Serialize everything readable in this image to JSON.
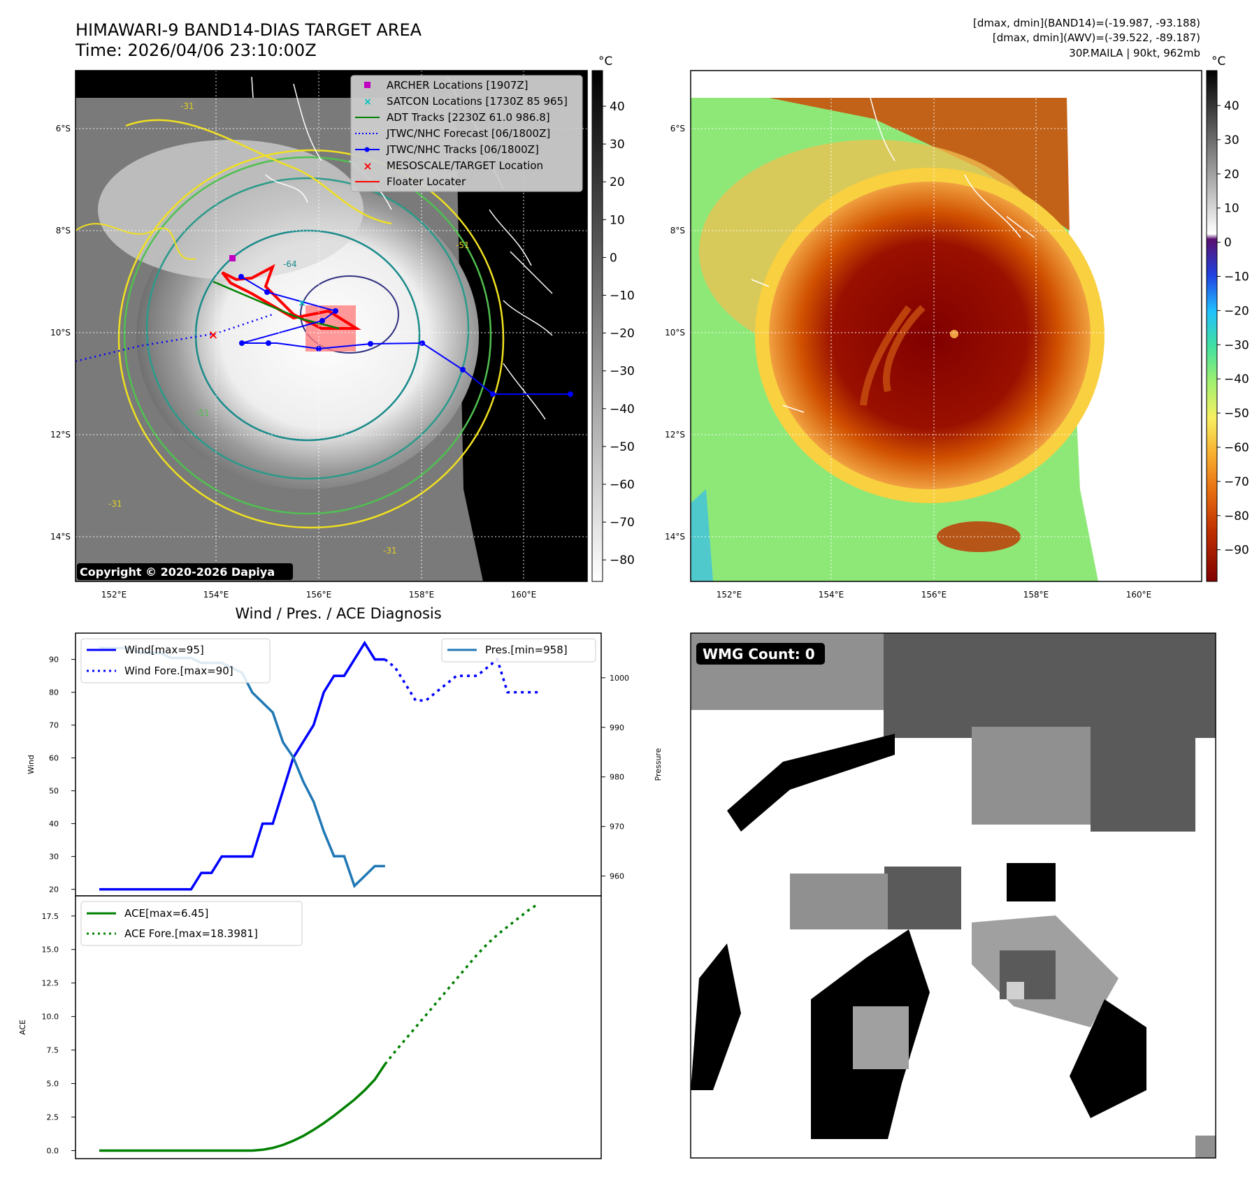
{
  "header": {
    "title": "HIMAWARI-9 BAND14-DIAS TARGET AREA",
    "time": "Time: 2026/04/06 23:10:00Z",
    "stat1": "[dmax, dmin](BAND14)=(-19.987, -93.188)",
    "stat2": "[dmax, dmin](AWV)=(-39.522, -89.187)",
    "storm": "30P.MAILA | 90kt, 962mb"
  },
  "maps": {
    "lat_labels": [
      "6°S",
      "8°S",
      "10°S",
      "12°S",
      "14°S"
    ],
    "lon_labels": [
      "152°E",
      "154°E",
      "156°E",
      "158°E",
      "160°E"
    ],
    "copyright": "Copyright © 2020-2026 Dapiya",
    "legend": [
      {
        "label": "ARCHER Locations [1907Z]",
        "color": "#c000c0",
        "marker": "square"
      },
      {
        "label": "SATCON Locations [1730Z 85 965]",
        "color": "#00c0c0",
        "marker": "x"
      },
      {
        "label": "ADT Tracks [2230Z 61.0 986.8]",
        "color": "#008000",
        "marker": "line"
      },
      {
        "label": "JTWC/NHC Forecast [06/1800Z]",
        "color": "#0000ff",
        "marker": "dotted"
      },
      {
        "label": "JTWC/NHC Tracks [06/1800Z]",
        "color": "#0000ff",
        "marker": "line-dot"
      },
      {
        "label": "MESOSCALE/TARGET Location",
        "color": "#ff0000",
        "marker": "x"
      },
      {
        "label": "Floater Locater",
        "color": "#ff0000",
        "marker": "line"
      }
    ],
    "colorbar_unit": "°C",
    "colorbar1_ticks": [
      "40",
      "30",
      "20",
      "10",
      "0",
      "−10",
      "−20",
      "−30",
      "−40",
      "−50",
      "−60",
      "−70",
      "−80"
    ],
    "colorbar2_ticks": [
      "40",
      "30",
      "20",
      "10",
      "0",
      "−10",
      "−20",
      "−30",
      "−40",
      "−50",
      "−60",
      "−70",
      "−80",
      "−90"
    ],
    "contour_labels": [
      "-31",
      "-51",
      "-64",
      "-31",
      "-51",
      "-31"
    ]
  },
  "diagnosis": {
    "title": "Wind / Pres. / ACE Diagnosis",
    "wmg": "WMG Count: 0"
  },
  "chart_data": [
    {
      "type": "line",
      "title": "Wind / Pres. / ACE Diagnosis",
      "ylabel": "Wind",
      "y2label": "Pressure",
      "ylim": [
        18,
        98
      ],
      "y2lim": [
        956,
        1009
      ],
      "yticks": [
        "90",
        "80",
        "70",
        "60",
        "50",
        "40",
        "30",
        "20"
      ],
      "y2ticks": [
        "1000",
        "990",
        "980",
        "970",
        "960"
      ],
      "series": [
        {
          "name": "Wind[max=95]",
          "axis": "left",
          "style": "solid",
          "color": "#0000ff",
          "x": [
            0,
            1,
            2,
            3,
            4,
            5,
            6,
            7,
            8,
            9,
            10,
            11,
            12,
            13,
            14,
            15,
            16,
            17,
            18,
            19,
            20,
            21,
            22,
            23,
            24,
            25,
            26,
            27,
            28
          ],
          "values": [
            20,
            20,
            20,
            20,
            20,
            20,
            20,
            20,
            20,
            20,
            25,
            25,
            30,
            30,
            30,
            30,
            40,
            40,
            50,
            60,
            65,
            70,
            80,
            85,
            85,
            90,
            95,
            90,
            90
          ]
        },
        {
          "name": "Wind Fore.[max=90]",
          "axis": "left",
          "style": "dotted",
          "color": "#0000ff",
          "x": [
            28,
            29,
            30,
            31,
            32,
            33,
            34,
            35,
            36,
            37,
            38,
            39,
            40,
            41,
            42,
            43
          ],
          "values": [
            90,
            87.5,
            82.5,
            77.5,
            77.5,
            80,
            82.5,
            85,
            85,
            85,
            87.5,
            90,
            80,
            80,
            80,
            80
          ]
        },
        {
          "name": "Pres.[min=958]",
          "axis": "right",
          "style": "solid",
          "color": "#1f77b4",
          "x": [
            0,
            1,
            2,
            3,
            4,
            5,
            6,
            7,
            8,
            9,
            10,
            11,
            12,
            13,
            14,
            15,
            16,
            17,
            18,
            19,
            20,
            21,
            22,
            23,
            24,
            25,
            26,
            27,
            28
          ],
          "values": [
            1006,
            1006,
            1006,
            1006,
            1005,
            1005,
            1005,
            1004,
            1004,
            1004,
            1003,
            1003,
            1003,
            1002,
            1001,
            997,
            995,
            993,
            987,
            984,
            979,
            975,
            969,
            964,
            964,
            958,
            960,
            962,
            962
          ]
        }
      ]
    },
    {
      "type": "line",
      "ylabel": "ACE",
      "ylim": [
        -0.6,
        19.0
      ],
      "yticks": [
        "17.5",
        "15.0",
        "12.5",
        "10.0",
        "7.5",
        "5.0",
        "2.5",
        "0.0"
      ],
      "series": [
        {
          "name": "ACE[max=6.45]",
          "style": "solid",
          "color": "#008000",
          "x": [
            0,
            1,
            2,
            3,
            4,
            5,
            6,
            7,
            8,
            9,
            10,
            11,
            12,
            13,
            14,
            15,
            16,
            17,
            18,
            19,
            20,
            21,
            22,
            23,
            24,
            25,
            26,
            27,
            28
          ],
          "values": [
            0,
            0,
            0,
            0,
            0,
            0,
            0,
            0,
            0,
            0,
            0,
            0,
            0,
            0,
            0,
            0,
            0.06,
            0.2,
            0.42,
            0.73,
            1.1,
            1.55,
            2.05,
            2.6,
            3.2,
            3.8,
            4.5,
            5.3,
            6.45
          ]
        },
        {
          "name": "ACE Fore.[max=18.3981]",
          "style": "dotted",
          "color": "#008000",
          "x": [
            28,
            29,
            30,
            31,
            32,
            33,
            34,
            35,
            36,
            37,
            38,
            39,
            40,
            41,
            42,
            43
          ],
          "values": [
            6.45,
            7.4,
            8.3,
            9.2,
            10.1,
            11.0,
            11.9,
            12.8,
            13.7,
            14.6,
            15.4,
            16.1,
            16.7,
            17.3,
            17.9,
            18.4
          ]
        }
      ]
    }
  ]
}
